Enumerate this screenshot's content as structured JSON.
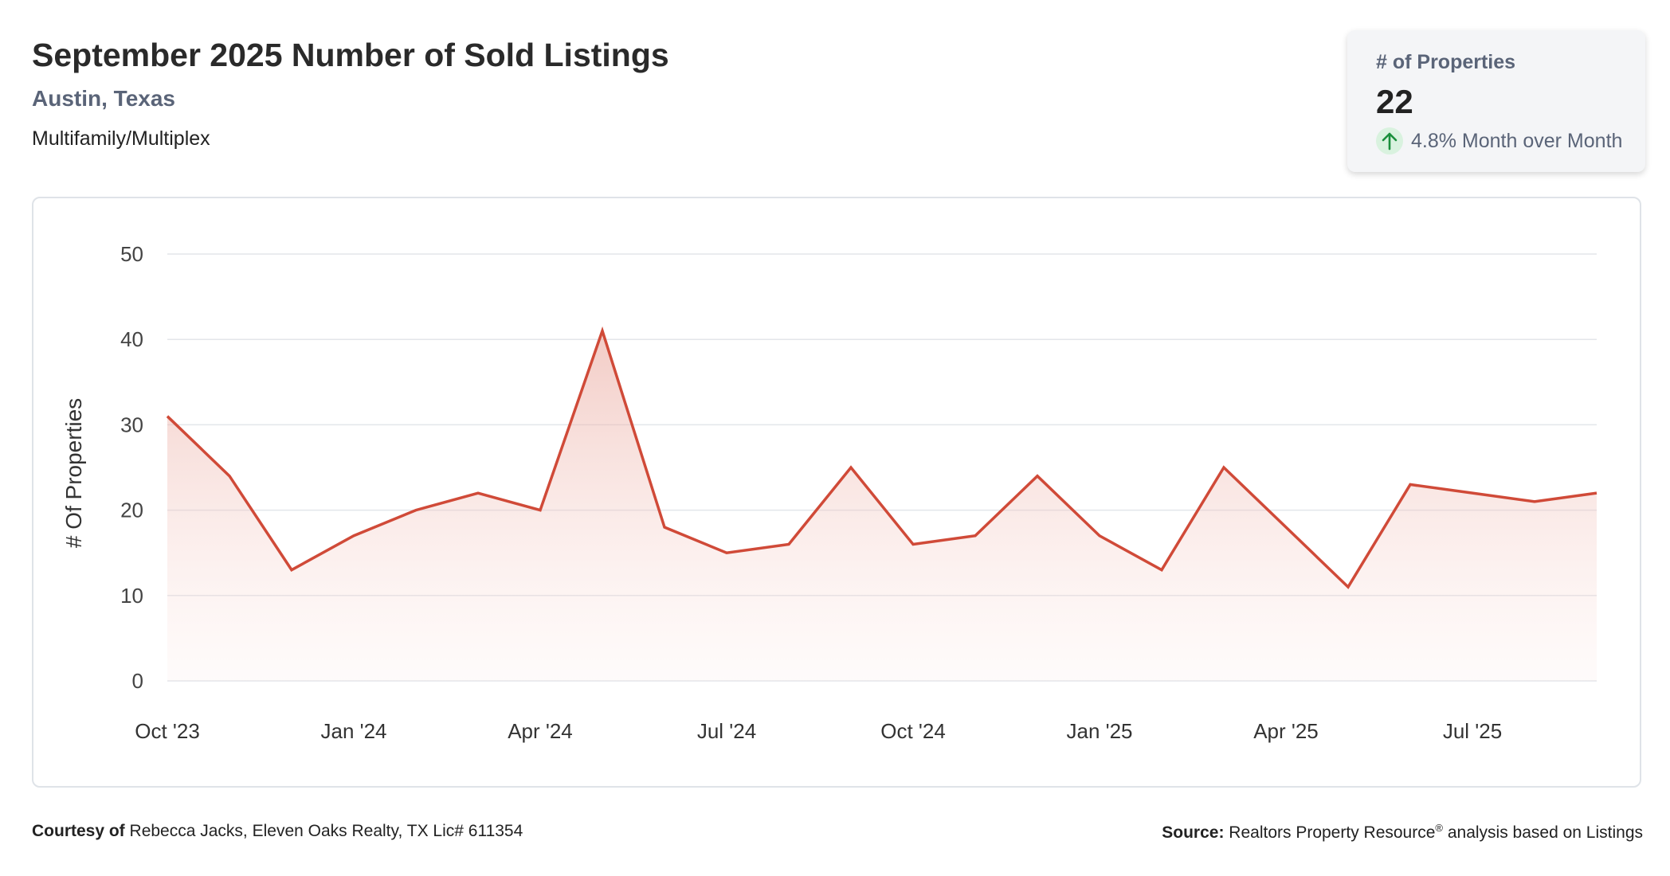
{
  "header": {
    "title": "September 2025 Number of Sold Listings",
    "location": "Austin, Texas",
    "property_type": "Multifamily/Multiplex"
  },
  "kpi": {
    "label": "# of Properties",
    "value": "22",
    "change_icon": "arrow-up-icon",
    "change_text": "4.8% Month over Month",
    "change_color": "#1a8f3c"
  },
  "footer": {
    "courtesy_label": "Courtesy of",
    "courtesy_text": "Rebecca Jacks, Eleven Oaks Realty, TX Lic# 611354",
    "source_label": "Source:",
    "source_name": "Realtors Property Resource",
    "source_mark": "®",
    "source_rest": "analysis based on Listings"
  },
  "chart_data": {
    "type": "area",
    "ylabel": "# Of Properties",
    "ylim": [
      0,
      50
    ],
    "yticks": [
      0,
      10,
      20,
      30,
      40,
      50
    ],
    "x": [
      "2023-10",
      "2023-11",
      "2023-12",
      "2024-01",
      "2024-02",
      "2024-03",
      "2024-04",
      "2024-05",
      "2024-06",
      "2024-07",
      "2024-08",
      "2024-09",
      "2024-10",
      "2024-11",
      "2024-12",
      "2025-01",
      "2025-02",
      "2025-03",
      "2025-04",
      "2025-05",
      "2025-06",
      "2025-07",
      "2025-08",
      "2025-09"
    ],
    "xticks": [
      {
        "label": "Oct '23",
        "index": 0
      },
      {
        "label": "Jan '24",
        "index": 3
      },
      {
        "label": "Apr '24",
        "index": 6
      },
      {
        "label": "Jul '24",
        "index": 9
      },
      {
        "label": "Oct '24",
        "index": 12
      },
      {
        "label": "Jan '25",
        "index": 15
      },
      {
        "label": "Apr '25",
        "index": 18
      },
      {
        "label": "Jul '25",
        "index": 21
      }
    ],
    "series": [
      {
        "values": [
          31,
          24,
          13,
          17,
          20,
          22,
          20,
          41,
          18,
          15,
          16,
          25,
          16,
          17,
          24,
          17,
          13,
          25,
          18,
          11,
          23,
          22,
          21,
          22
        ],
        "color": "#d04a38"
      }
    ],
    "grid": true,
    "legend": "none"
  }
}
